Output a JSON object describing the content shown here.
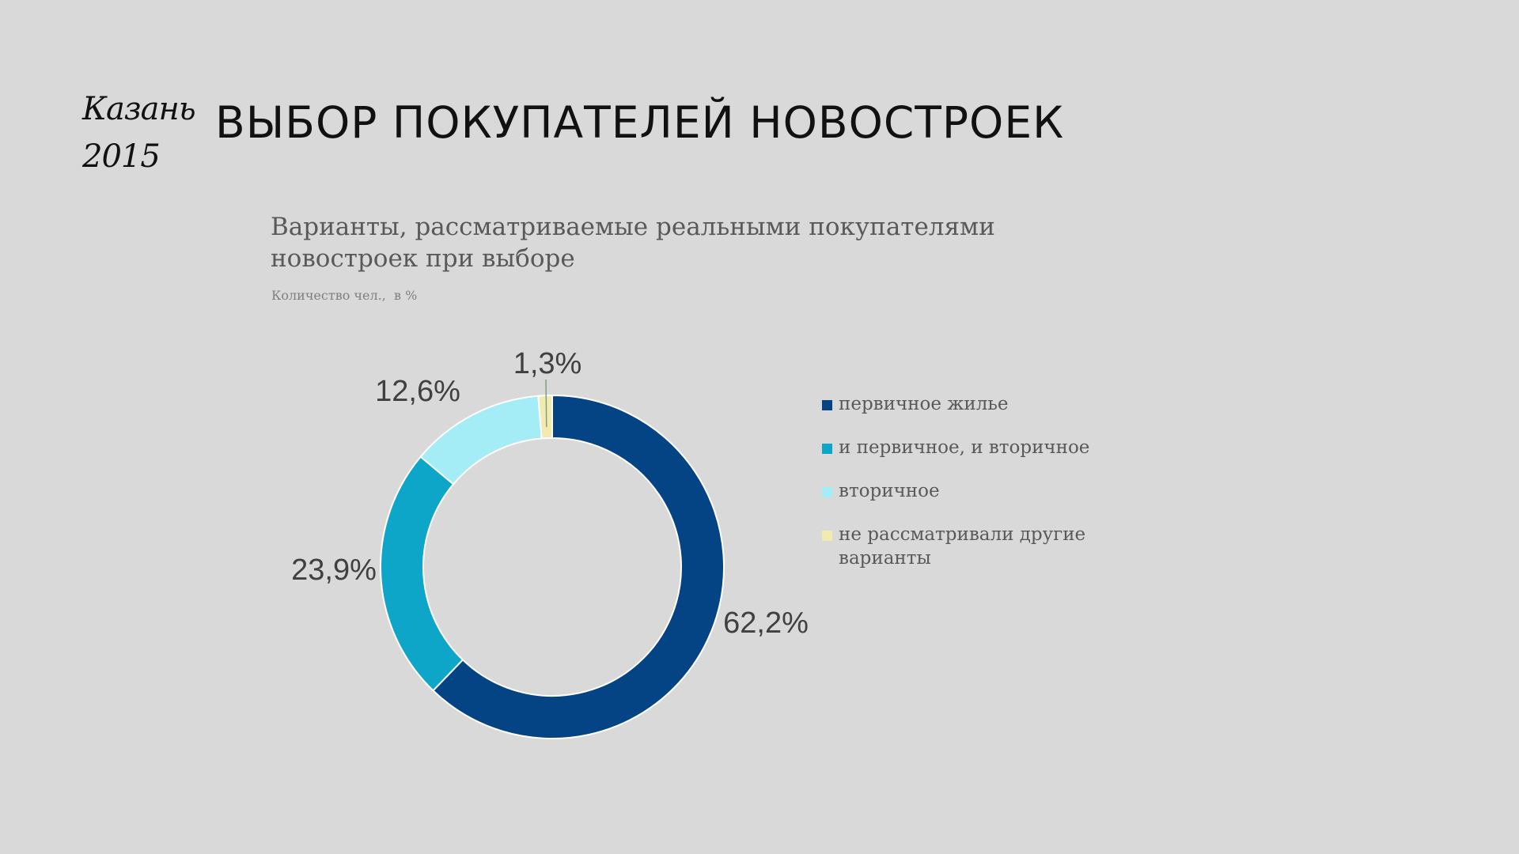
{
  "header": {
    "city_line1": "Казань",
    "city_line2": "2015",
    "title": "ВЫБОР ПОКУПАТЕЛЕЙ НОВОСТРОЕК"
  },
  "chart_data": {
    "type": "pie",
    "variant": "donut",
    "title": "Варианты, рассматриваемые реальными покупателями новостроек при выборе",
    "subtitle": "Количество чел.,  в %",
    "legend_position": "right",
    "slices": [
      {
        "name": "первичное жилье",
        "value": 62.2,
        "label": "62,2%",
        "color": "#044485"
      },
      {
        "name": "и первичное, и вторичное",
        "value": 23.9,
        "label": "23,9%",
        "color": "#0ea6c8"
      },
      {
        "name": "вторичное",
        "value": 12.6,
        "label": "12,6%",
        "color": "#a4ecf6"
      },
      {
        "name": "не рассматривали другие варианты",
        "value": 1.3,
        "label": "1,3%",
        "color": "#f2ebb0"
      }
    ]
  }
}
